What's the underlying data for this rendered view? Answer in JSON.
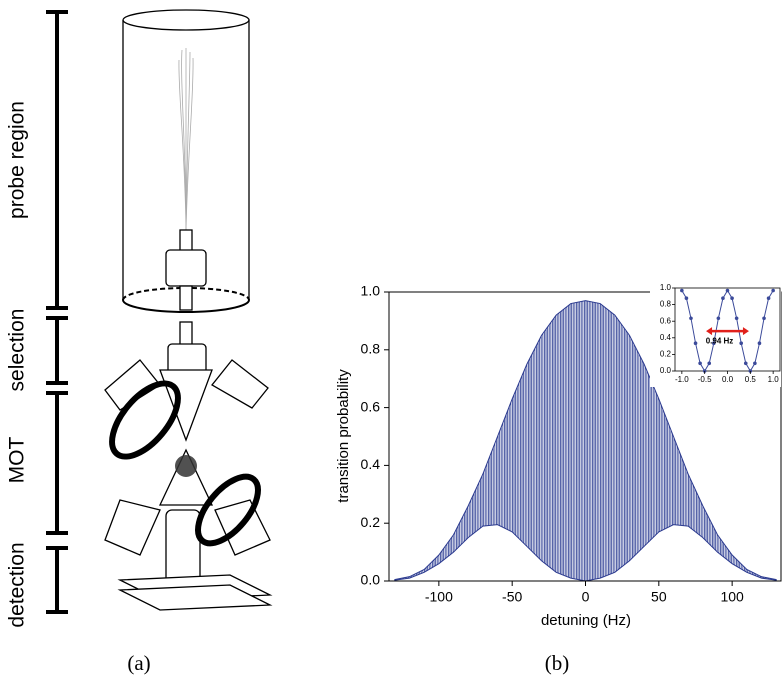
{
  "diagram": {
    "labels": [
      "probe region",
      "selection",
      "MOT",
      "detection"
    ],
    "caption": "(a)"
  },
  "chart_data": {
    "type": "line",
    "caption": "(b)",
    "xlabel": "detuning (Hz)",
    "ylabel": "transition probability",
    "x": [
      -130,
      -120,
      -110,
      -100,
      -90,
      -80,
      -70,
      -60,
      -50,
      -40,
      -30,
      -20,
      -10,
      0,
      10,
      20,
      30,
      40,
      50,
      60,
      70,
      80,
      90,
      100,
      110,
      120,
      130
    ],
    "series": [
      {
        "color": "#2b3a8f",
        "values": [
          0.005,
          0.015,
          0.04,
          0.09,
          0.16,
          0.26,
          0.37,
          0.5,
          0.63,
          0.75,
          0.85,
          0.92,
          0.96,
          0.97,
          0.96,
          0.92,
          0.85,
          0.75,
          0.63,
          0.5,
          0.37,
          0.26,
          0.16,
          0.09,
          0.04,
          0.015,
          0.005
        ]
      },
      {
        "color": "#2b3a8f",
        "values": [
          0.003,
          0.01,
          0.03,
          0.06,
          0.1,
          0.15,
          0.19,
          0.195,
          0.17,
          0.12,
          0.07,
          0.03,
          0.01,
          0,
          0.01,
          0.03,
          0.07,
          0.12,
          0.17,
          0.195,
          0.19,
          0.15,
          0.1,
          0.06,
          0.03,
          0.01,
          0.003
        ]
      }
    ],
    "xlim": [
      -134,
      134
    ],
    "ylim": [
      0,
      1
    ],
    "xticks": [
      -100,
      -50,
      0,
      50,
      100
    ],
    "yticks": [
      {
        "value": 0,
        "label": "0.0"
      },
      0.2,
      0.4,
      0.6,
      0.8,
      {
        "value": 1,
        "label": "1.0"
      }
    ],
    "inset": {
      "x": [
        -1,
        -0.9,
        -0.8,
        -0.7,
        -0.6,
        -0.5,
        -0.4,
        -0.3,
        -0.2,
        -0.1,
        0,
        0.1,
        0.2,
        0.3,
        0.4,
        0.5,
        0.6,
        0.7,
        0.8,
        0.9,
        1
      ],
      "values": [
        0.97,
        0.877,
        0.635,
        0.335,
        0.093,
        0,
        0.093,
        0.335,
        0.635,
        0.877,
        0.97,
        0.877,
        0.635,
        0.335,
        0.093,
        0,
        0.093,
        0.335,
        0.635,
        0.877,
        0.97
      ],
      "color": "#3b4a9a",
      "xlim": [
        -1.15,
        1.15
      ],
      "ylim": [
        0,
        1
      ],
      "xticks": [
        {
          "value": -1,
          "label": "-1.0"
        },
        -0.5,
        {
          "value": 0,
          "label": "0.0"
        },
        0.5,
        {
          "value": 1,
          "label": "1.0"
        }
      ],
      "yticks": [
        {
          "value": 0,
          "label": "0.0"
        },
        0.2,
        0.4,
        0.6,
        0.8,
        {
          "value": 1,
          "label": "1.0"
        }
      ],
      "annotation": {
        "text": "0.94 Hz",
        "x": [
          -0.47,
          0.47
        ],
        "y": 0.48,
        "color": "#e0201b"
      }
    }
  }
}
